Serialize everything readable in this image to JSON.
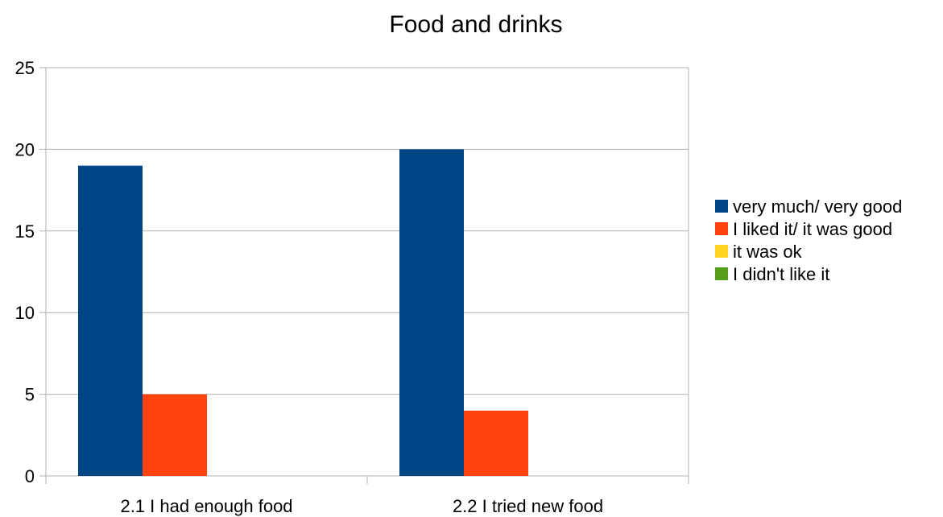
{
  "chart_data": {
    "type": "bar",
    "title": "Food and drinks",
    "xlabel": "",
    "ylabel": "",
    "categories": [
      "2.1  I had enough food",
      "2.2  I tried new food"
    ],
    "series": [
      {
        "name": "very much/ very good",
        "color": "#004586",
        "values": [
          19,
          20
        ]
      },
      {
        "name": "I liked it/ it was good",
        "color": "#ff420e",
        "values": [
          5,
          4
        ]
      },
      {
        "name": "it was ok",
        "color": "#ffd320",
        "values": [
          0,
          0
        ]
      },
      {
        "name": "I didn't like it",
        "color": "#579d1c",
        "values": [
          0,
          0
        ]
      }
    ],
    "ylim": [
      0,
      25
    ],
    "yticks": [
      0,
      5,
      10,
      15,
      20,
      25
    ],
    "grid": true,
    "legend_position": "right"
  }
}
